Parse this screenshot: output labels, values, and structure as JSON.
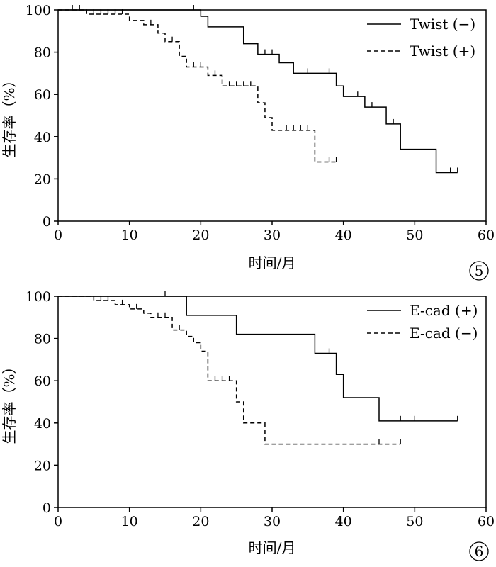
{
  "chart_data": [
    {
      "type": "line",
      "panel_label": "5",
      "xlabel": "时间/月",
      "ylabel": "生存率（%）",
      "xlim": [
        0,
        60
      ],
      "ylim": [
        0,
        100
      ],
      "xticks": [
        "0",
        "10",
        "20",
        "30",
        "40",
        "50",
        "60"
      ],
      "yticks": [
        "0",
        "20",
        "40",
        "60",
        "80",
        "100"
      ],
      "grid": false,
      "legend_position": "top-right",
      "series": [
        {
          "name": "Twist (−)",
          "line_style": "solid",
          "steps": [
            [
              0,
              100
            ],
            [
              20,
              100
            ],
            [
              20,
              97
            ],
            [
              21,
              97
            ],
            [
              21,
              92
            ],
            [
              26,
              92
            ],
            [
              26,
              84
            ],
            [
              28,
              84
            ],
            [
              28,
              79
            ],
            [
              31,
              79
            ],
            [
              31,
              75
            ],
            [
              33,
              75
            ],
            [
              33,
              70
            ],
            [
              39,
              70
            ],
            [
              39,
              64
            ],
            [
              40,
              64
            ],
            [
              40,
              59
            ],
            [
              43,
              59
            ],
            [
              43,
              54
            ],
            [
              46,
              54
            ],
            [
              46,
              46
            ],
            [
              48,
              46
            ],
            [
              48,
              34
            ],
            [
              53,
              34
            ],
            [
              53,
              23
            ],
            [
              56,
              23
            ]
          ],
          "censored": [
            [
              2,
              100
            ],
            [
              3,
              100
            ],
            [
              19,
              100
            ],
            [
              29,
              79
            ],
            [
              30,
              79
            ],
            [
              35,
              70
            ],
            [
              38,
              70
            ],
            [
              42,
              59
            ],
            [
              44,
              54
            ],
            [
              47,
              46
            ],
            [
              55,
              23
            ],
            [
              56,
              23
            ]
          ]
        },
        {
          "name": "Twist (+)",
          "line_style": "dashed",
          "steps": [
            [
              0,
              100
            ],
            [
              4,
              100
            ],
            [
              4,
              98
            ],
            [
              10,
              98
            ],
            [
              10,
              95
            ],
            [
              12,
              95
            ],
            [
              12,
              93
            ],
            [
              14,
              93
            ],
            [
              14,
              89
            ],
            [
              15,
              89
            ],
            [
              15,
              85
            ],
            [
              17,
              85
            ],
            [
              17,
              78
            ],
            [
              18,
              78
            ],
            [
              18,
              73
            ],
            [
              21,
              73
            ],
            [
              21,
              69
            ],
            [
              23,
              69
            ],
            [
              23,
              64
            ],
            [
              28,
              64
            ],
            [
              28,
              56
            ],
            [
              29,
              56
            ],
            [
              29,
              49
            ],
            [
              30,
              49
            ],
            [
              30,
              43
            ],
            [
              36,
              43
            ],
            [
              36,
              28
            ],
            [
              39,
              28
            ]
          ],
          "censored": [
            [
              5,
              98
            ],
            [
              6,
              98
            ],
            [
              7,
              98
            ],
            [
              8,
              98
            ],
            [
              9,
              98
            ],
            [
              13,
              93
            ],
            [
              16,
              85
            ],
            [
              19,
              73
            ],
            [
              20,
              73
            ],
            [
              22,
              69
            ],
            [
              24,
              64
            ],
            [
              25,
              64
            ],
            [
              26,
              64
            ],
            [
              27,
              64
            ],
            [
              32,
              43
            ],
            [
              33,
              43
            ],
            [
              34,
              43
            ],
            [
              35,
              43
            ],
            [
              38,
              28
            ],
            [
              39,
              28
            ]
          ]
        }
      ]
    },
    {
      "type": "line",
      "panel_label": "6",
      "xlabel": "时间/月",
      "ylabel": "生存率（%）",
      "xlim": [
        0,
        60
      ],
      "ylim": [
        0,
        100
      ],
      "xticks": [
        "0",
        "10",
        "20",
        "30",
        "40",
        "50",
        "60"
      ],
      "yticks": [
        "0",
        "20",
        "40",
        "60",
        "80",
        "100"
      ],
      "grid": false,
      "legend_position": "top-right",
      "series": [
        {
          "name": "E-cad (+)",
          "line_style": "solid",
          "steps": [
            [
              0,
              100
            ],
            [
              18,
              100
            ],
            [
              18,
              91
            ],
            [
              25,
              91
            ],
            [
              25,
              82
            ],
            [
              36,
              82
            ],
            [
              36,
              73
            ],
            [
              39,
              73
            ],
            [
              39,
              63
            ],
            [
              40,
              63
            ],
            [
              40,
              52
            ],
            [
              45,
              52
            ],
            [
              45,
              41
            ],
            [
              56,
              41
            ]
          ],
          "censored": [
            [
              15,
              100
            ],
            [
              38,
              73
            ],
            [
              48,
              41
            ],
            [
              50,
              41
            ],
            [
              56,
              41
            ]
          ]
        },
        {
          "name": "E-cad (−)",
          "line_style": "dashed",
          "steps": [
            [
              0,
              100
            ],
            [
              5,
              100
            ],
            [
              5,
              98
            ],
            [
              8,
              98
            ],
            [
              8,
              96
            ],
            [
              10,
              96
            ],
            [
              10,
              94
            ],
            [
              12,
              94
            ],
            [
              12,
              92
            ],
            [
              13,
              92
            ],
            [
              13,
              90
            ],
            [
              16,
              90
            ],
            [
              16,
              84
            ],
            [
              18,
              84
            ],
            [
              18,
              81
            ],
            [
              19,
              81
            ],
            [
              19,
              78
            ],
            [
              20,
              78
            ],
            [
              20,
              74
            ],
            [
              21,
              74
            ],
            [
              21,
              60
            ],
            [
              25,
              60
            ],
            [
              25,
              50
            ],
            [
              26,
              50
            ],
            [
              26,
              40
            ],
            [
              29,
              40
            ],
            [
              29,
              30
            ],
            [
              48,
              30
            ]
          ],
          "censored": [
            [
              6,
              98
            ],
            [
              7,
              98
            ],
            [
              9,
              96
            ],
            [
              11,
              94
            ],
            [
              14,
              90
            ],
            [
              15,
              90
            ],
            [
              17,
              84
            ],
            [
              22,
              60
            ],
            [
              23,
              60
            ],
            [
              24,
              60
            ],
            [
              45,
              30
            ],
            [
              48,
              30
            ]
          ]
        }
      ]
    }
  ]
}
